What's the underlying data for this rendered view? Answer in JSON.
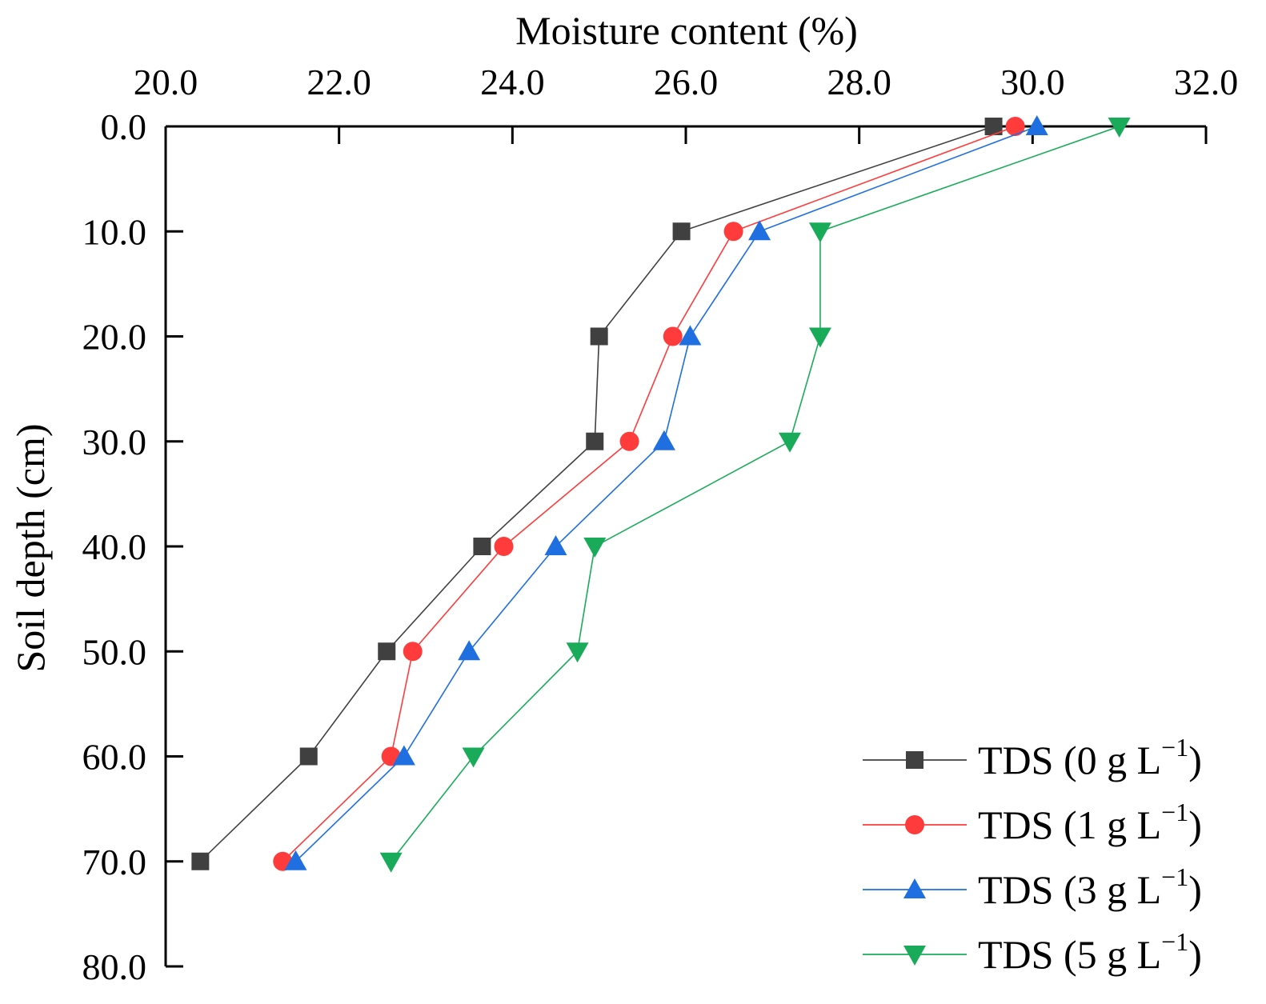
{
  "chart_data": {
    "type": "line",
    "xlabel": "Moisture content (%)",
    "ylabel": "Soil depth (cm)",
    "xlim": [
      20.0,
      32.0
    ],
    "ylim": [
      0.0,
      80.0
    ],
    "y_inverted": true,
    "x_axis_position": "top",
    "x_ticks": [
      "20.0",
      "22.0",
      "24.0",
      "26.0",
      "28.0",
      "30.0",
      "32.0"
    ],
    "y_ticks": [
      "0.0",
      "10.0",
      "20.0",
      "30.0",
      "40.0",
      "50.0",
      "60.0",
      "70.0",
      "80.0"
    ],
    "grid": false,
    "legend_position": "bottom-right",
    "series": [
      {
        "name_prefix": "TDS (0 g L",
        "name_sup": "−1",
        "name_suffix": ")",
        "color": "#404040",
        "marker": "square",
        "points": [
          [
            29.55,
            0
          ],
          [
            25.95,
            10
          ],
          [
            25.0,
            20
          ],
          [
            24.95,
            30
          ],
          [
            23.65,
            40
          ],
          [
            22.55,
            50
          ],
          [
            21.65,
            60
          ],
          [
            20.4,
            70
          ]
        ]
      },
      {
        "name_prefix": "TDS (1 g L",
        "name_sup": "−1",
        "name_suffix": ")",
        "color": "#ff3b3b",
        "marker": "circle",
        "points": [
          [
            29.8,
            0
          ],
          [
            26.55,
            10
          ],
          [
            25.85,
            20
          ],
          [
            25.35,
            30
          ],
          [
            23.9,
            40
          ],
          [
            22.85,
            50
          ],
          [
            22.6,
            60
          ],
          [
            21.35,
            70
          ]
        ]
      },
      {
        "name_prefix": "TDS (3 g L",
        "name_sup": "−1",
        "name_suffix": ")",
        "color": "#1f6fe0",
        "marker": "triangle-up",
        "points": [
          [
            30.05,
            0
          ],
          [
            26.85,
            10
          ],
          [
            26.05,
            20
          ],
          [
            25.75,
            30
          ],
          [
            24.5,
            40
          ],
          [
            23.5,
            50
          ],
          [
            22.75,
            60
          ],
          [
            21.5,
            70
          ]
        ]
      },
      {
        "name_prefix": "TDS (5 g L",
        "name_sup": "−1",
        "name_suffix": ")",
        "color": "#1aab5a",
        "marker": "triangle-down",
        "points": [
          [
            31.0,
            0
          ],
          [
            27.55,
            10
          ],
          [
            27.55,
            20
          ],
          [
            27.2,
            30
          ],
          [
            24.95,
            40
          ],
          [
            24.75,
            50
          ],
          [
            23.55,
            60
          ],
          [
            22.6,
            70
          ]
        ]
      }
    ]
  }
}
